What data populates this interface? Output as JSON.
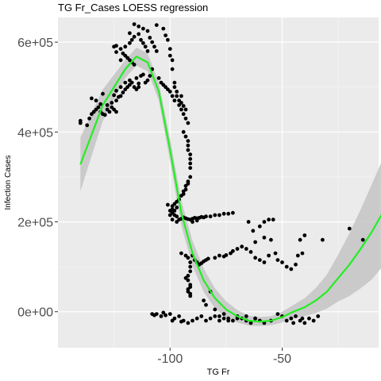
{
  "chart_data": {
    "type": "scatter",
    "title": "TG Fr_Cases LOESS regression",
    "xlabel": "TG Fr",
    "ylabel": "Infection Cases",
    "xlim": [
      -150,
      -7
    ],
    "ylim": [
      -80000,
      655000
    ],
    "x_ticks": [
      {
        "value": -100,
        "label": "-100"
      },
      {
        "value": -50,
        "label": "-50"
      }
    ],
    "y_ticks": [
      {
        "value": 0,
        "label": "0e+00"
      },
      {
        "value": 200000,
        "label": "2e+05"
      },
      {
        "value": 400000,
        "label": "4e+05"
      },
      {
        "value": 600000,
        "label": "6e+05"
      }
    ],
    "grid": true,
    "colors": {
      "panel": "#ebebeb",
      "grid_major": "#ffffff",
      "points": "#000000",
      "fit_line": "#22ee22",
      "confidence_band": "#c4c4c4"
    },
    "series": [
      {
        "type": "scatter",
        "points": [
          [
            -140,
            425000
          ],
          [
            -140,
            420000
          ],
          [
            -137,
            415000
          ],
          [
            -136,
            430000
          ],
          [
            -135,
            440000
          ],
          [
            -134,
            445000
          ],
          [
            -133,
            450000
          ],
          [
            -132,
            455000
          ],
          [
            -131,
            445000
          ],
          [
            -130,
            440000
          ],
          [
            -129,
            438000
          ],
          [
            -128,
            450000
          ],
          [
            -127,
            445000
          ],
          [
            -126,
            455000
          ],
          [
            -125,
            450000
          ],
          [
            -124,
            445000
          ],
          [
            -135,
            475000
          ],
          [
            -133,
            470000
          ],
          [
            -131,
            462000
          ],
          [
            -130,
            485000
          ],
          [
            -128,
            460000
          ],
          [
            -126,
            465000
          ],
          [
            -124,
            470000
          ],
          [
            -123,
            478000
          ],
          [
            -122,
            480000
          ],
          [
            -121,
            488000
          ],
          [
            -120,
            495000
          ],
          [
            -119,
            500000
          ],
          [
            -118,
            505000
          ],
          [
            -117,
            510000
          ],
          [
            -116,
            500000
          ],
          [
            -115,
            495000
          ],
          [
            -114,
            500000
          ],
          [
            -120,
            510000
          ],
          [
            -118,
            515000
          ],
          [
            -122,
            500000
          ],
          [
            -124,
            492000
          ],
          [
            -125,
            482000
          ],
          [
            -115,
            520000
          ],
          [
            -113,
            525000
          ],
          [
            -112,
            528000
          ],
          [
            -114,
            508000
          ],
          [
            -125,
            590000
          ],
          [
            -124,
            592000
          ],
          [
            -122,
            585000
          ],
          [
            -121,
            575000
          ],
          [
            -120,
            570000
          ],
          [
            -119,
            565000
          ],
          [
            -118,
            560000
          ],
          [
            -117,
            555000
          ],
          [
            -116,
            550000
          ],
          [
            -122,
            560000
          ],
          [
            -124,
            578000
          ],
          [
            -120,
            590000
          ],
          [
            -118,
            598000
          ],
          [
            -117,
            605000
          ],
          [
            -116,
            612000
          ],
          [
            -118,
            620000
          ],
          [
            -116,
            640000
          ],
          [
            -114,
            635000
          ],
          [
            -114,
            618000
          ],
          [
            -113,
            605000
          ],
          [
            -112,
            598000
          ],
          [
            -111,
            590000
          ],
          [
            -110,
            580000
          ],
          [
            -112,
            630000
          ],
          [
            -110,
            625000
          ],
          [
            -109,
            610000
          ],
          [
            -108,
            600000
          ],
          [
            -107,
            590000
          ],
          [
            -106,
            580000
          ],
          [
            -106,
            638000
          ],
          [
            -103,
            630000
          ],
          [
            -102,
            615000
          ],
          [
            -101,
            605000
          ],
          [
            -100,
            585000
          ],
          [
            -100,
            570000
          ],
          [
            -99,
            560000
          ],
          [
            -99,
            540000
          ],
          [
            -98,
            510000
          ],
          [
            -98,
            500000
          ],
          [
            -97,
            490000
          ],
          [
            -97,
            480000
          ],
          [
            -96,
            470000
          ],
          [
            -95,
            465000
          ],
          [
            -94,
            458000
          ],
          [
            -93,
            450000
          ],
          [
            -95,
            480000
          ],
          [
            -108,
            540000
          ],
          [
            -109,
            525000
          ],
          [
            -110,
            515000
          ],
          [
            -111,
            510000
          ],
          [
            -105,
            520000
          ],
          [
            -104,
            510000
          ],
          [
            -103,
            505000
          ],
          [
            -102,
            500000
          ],
          [
            -101,
            495000
          ],
          [
            -100,
            490000
          ],
          [
            -99,
            480000
          ],
          [
            -98,
            470000
          ],
          [
            -96,
            460000
          ],
          [
            -95,
            450000
          ],
          [
            -94,
            440000
          ],
          [
            -93,
            430000
          ],
          [
            -92,
            420000
          ],
          [
            -94,
            400000
          ],
          [
            -93,
            390000
          ],
          [
            -92,
            380000
          ],
          [
            -92,
            370000
          ],
          [
            -92,
            360000
          ],
          [
            -91,
            350000
          ],
          [
            -91,
            340000
          ],
          [
            -91,
            330000
          ],
          [
            -91,
            320000
          ],
          [
            -91,
            300000
          ],
          [
            -92,
            290000
          ],
          [
            -92,
            285000
          ],
          [
            -93,
            280000
          ],
          [
            -93,
            272000
          ],
          [
            -94,
            268000
          ],
          [
            -94,
            262000
          ],
          [
            -95,
            258000
          ],
          [
            -96,
            250000
          ],
          [
            -97,
            245000
          ],
          [
            -98,
            240000
          ],
          [
            -99,
            235000
          ],
          [
            -99,
            228000
          ],
          [
            -100,
            225000
          ],
          [
            -99,
            220000
          ],
          [
            -98,
            215000
          ],
          [
            -97,
            212000
          ],
          [
            -99,
            205000
          ],
          [
            -100,
            215000
          ],
          [
            -98,
            225000
          ],
          [
            -97,
            232000
          ],
          [
            -101,
            238000
          ],
          [
            -97,
            200000
          ],
          [
            -96,
            205000
          ],
          [
            -95,
            207000
          ],
          [
            -94,
            210000
          ],
          [
            -93,
            208000
          ],
          [
            -92,
            206000
          ],
          [
            -91,
            205000
          ],
          [
            -90,
            207000
          ],
          [
            -89,
            209000
          ],
          [
            -88,
            208000
          ],
          [
            -87,
            209000
          ],
          [
            -86,
            211000
          ],
          [
            -85,
            210000
          ],
          [
            -84,
            212000
          ],
          [
            -82,
            212000
          ],
          [
            -80,
            215000
          ],
          [
            -78,
            215000
          ],
          [
            -76,
            218000
          ],
          [
            -74,
            218000
          ],
          [
            -72,
            220000
          ],
          [
            -90,
            200000
          ],
          [
            -88,
            203000
          ],
          [
            -58,
            200000
          ],
          [
            -56,
            205000
          ],
          [
            -54,
            205000
          ],
          [
            -60,
            190000
          ],
          [
            -65,
            200000
          ],
          [
            -63,
            180000
          ],
          [
            -62,
            155000
          ],
          [
            -58,
            165000
          ],
          [
            -55,
            160000
          ],
          [
            -40,
            170000
          ],
          [
            -32,
            160000
          ],
          [
            -95,
            130000
          ],
          [
            -93,
            125000
          ],
          [
            -92,
            120000
          ],
          [
            -91,
            110000
          ],
          [
            -91,
            100000
          ],
          [
            -91,
            90000
          ],
          [
            -92,
            80000
          ],
          [
            -93,
            75000
          ],
          [
            -92,
            70000
          ],
          [
            -91,
            60000
          ],
          [
            -91,
            55000
          ],
          [
            -92,
            50000
          ],
          [
            -92,
            45000
          ],
          [
            -91,
            40000
          ],
          [
            -91,
            35000
          ],
          [
            -90,
            125000
          ],
          [
            -89,
            115000
          ],
          [
            -88,
            110000
          ],
          [
            -87,
            105000
          ],
          [
            -86,
            108000
          ],
          [
            -85,
            112000
          ],
          [
            -84,
            115000
          ],
          [
            -83,
            118000
          ],
          [
            -80,
            120000
          ],
          [
            -78,
            125000
          ],
          [
            -76,
            123000
          ],
          [
            -75,
            126000
          ],
          [
            -73,
            130000
          ],
          [
            -72,
            135000
          ],
          [
            -70,
            140000
          ],
          [
            -68,
            145000
          ],
          [
            -66,
            140000
          ],
          [
            -64,
            133000
          ],
          [
            -62,
            120000
          ],
          [
            -60,
            115000
          ],
          [
            -58,
            110000
          ],
          [
            -56,
            125000
          ],
          [
            -53,
            130000
          ],
          [
            -52,
            115000
          ],
          [
            -50,
            110000
          ],
          [
            -48,
            100000
          ],
          [
            -46,
            95000
          ],
          [
            -44,
            105000
          ],
          [
            -43,
            125000
          ],
          [
            -41,
            130000
          ],
          [
            -42,
            160000
          ],
          [
            -20,
            185000
          ],
          [
            -14,
            160000
          ],
          [
            -5,
            170000
          ],
          [
            -82,
            45000
          ],
          [
            -85,
            25000
          ],
          [
            -84,
            15000
          ],
          [
            -80,
            5000
          ],
          [
            -78,
            -10000
          ],
          [
            -76,
            -5000
          ],
          [
            -74,
            -15000
          ],
          [
            -72,
            -20000
          ],
          [
            -70,
            -10000
          ],
          [
            -68,
            -15000
          ],
          [
            -66,
            -20000
          ],
          [
            -62,
            -15000
          ],
          [
            -58,
            -25000
          ],
          [
            -55,
            -20000
          ],
          [
            -50,
            -10000
          ],
          [
            -48,
            -20000
          ],
          [
            -46,
            -15000
          ],
          [
            -44,
            -10000
          ],
          [
            -42,
            -20000
          ],
          [
            -40,
            -25000
          ],
          [
            -38,
            -15000
          ],
          [
            -36,
            -20000
          ],
          [
            -34,
            -10000
          ],
          [
            -52,
            -5000
          ],
          [
            -45,
            -25000
          ],
          [
            -41,
            -15000
          ],
          [
            -60,
            -20000
          ],
          [
            -64,
            -25000
          ],
          [
            -108,
            -5000
          ],
          [
            -106,
            -5000
          ],
          [
            -104,
            -10000
          ],
          [
            -102,
            -8000
          ],
          [
            -100,
            -5000
          ],
          [
            -98,
            -15000
          ],
          [
            -96,
            -10000
          ],
          [
            -94,
            -20000
          ],
          [
            -92,
            -25000
          ],
          [
            -90,
            -20000
          ],
          [
            -88,
            -15000
          ],
          [
            -86,
            -10000
          ],
          [
            -84,
            -20000
          ],
          [
            -82,
            -15000
          ],
          [
            -80,
            -10000
          ],
          [
            -78,
            -20000
          ],
          [
            -76,
            -15000
          ],
          [
            -74,
            -20000
          ],
          [
            -70,
            -15000
          ],
          [
            -66,
            -10000
          ],
          [
            -62,
            -15000
          ],
          [
            -107,
            -8000
          ],
          [
            -103,
            -2000
          ],
          [
            -99,
            -20000
          ],
          [
            -95,
            -22000
          ]
        ]
      },
      {
        "type": "loess",
        "x": [
          -140,
          -130,
          -120,
          -115,
          -110,
          -105,
          -100,
          -95,
          -90,
          -85,
          -80,
          -75,
          -70,
          -65,
          -60,
          -55,
          -50,
          -45,
          -40,
          -35,
          -30,
          -25,
          -20,
          -15,
          -10,
          -5
        ],
        "y": [
          328000,
          460000,
          540000,
          568000,
          555000,
          490000,
          360000,
          220000,
          130000,
          70000,
          30000,
          5000,
          -10000,
          -20000,
          -22000,
          -20000,
          -12000,
          0,
          10000,
          25000,
          45000,
          75000,
          105000,
          140000,
          178000,
          222000
        ],
        "band": [
          60000,
          35000,
          20000,
          20000,
          20000,
          20000,
          25000,
          28000,
          28000,
          26000,
          22000,
          18000,
          14000,
          11000,
          10000,
          10000,
          12000,
          15000,
          20000,
          28000,
          38000,
          52000,
          70000,
          88000,
          106000,
          120000
        ]
      }
    ]
  }
}
